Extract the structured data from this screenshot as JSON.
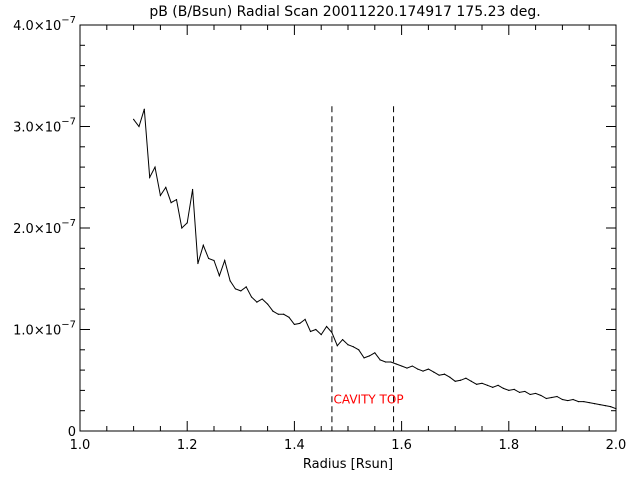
{
  "chart_data": {
    "type": "line",
    "title": "pB (B/Bsun) Radial Scan 20011220.174917 175.23 deg.",
    "xlabel": "Radius [Rsun]",
    "ylabel": "",
    "xlim": [
      1.0,
      2.0
    ],
    "ylim": [
      0,
      4e-07
    ],
    "x_ticks": [
      1.0,
      1.2,
      1.4,
      1.6,
      1.8,
      2.0
    ],
    "x_tick_labels": [
      "1.0",
      "1.2",
      "1.4",
      "1.6",
      "1.8",
      "2.0"
    ],
    "y_ticks": [
      0,
      1e-07,
      2e-07,
      3e-07,
      4e-07
    ],
    "y_tick_labels": [
      {
        "mantissa": "0",
        "exponent": ""
      },
      {
        "mantissa": "1.0×10",
        "exponent": "−7"
      },
      {
        "mantissa": "2.0×10",
        "exponent": "−7"
      },
      {
        "mantissa": "3.0×10",
        "exponent": "−7"
      },
      {
        "mantissa": "4.0×10",
        "exponent": "−7"
      }
    ],
    "grid": false,
    "series": [
      {
        "color": "#000000",
        "x": [
          1.1,
          1.11,
          1.12,
          1.13,
          1.14,
          1.15,
          1.16,
          1.17,
          1.18,
          1.19,
          1.2,
          1.21,
          1.22,
          1.23,
          1.24,
          1.25,
          1.26,
          1.27,
          1.28,
          1.29,
          1.3,
          1.31,
          1.32,
          1.33,
          1.34,
          1.35,
          1.36,
          1.37,
          1.38,
          1.39,
          1.4,
          1.41,
          1.42,
          1.43,
          1.44,
          1.45,
          1.46,
          1.47,
          1.48,
          1.49,
          1.5,
          1.51,
          1.52,
          1.53,
          1.54,
          1.55,
          1.56,
          1.57,
          1.58,
          1.59,
          1.6,
          1.61,
          1.62,
          1.63,
          1.64,
          1.65,
          1.66,
          1.67,
          1.68,
          1.69,
          1.7,
          1.71,
          1.72,
          1.73,
          1.74,
          1.75,
          1.76,
          1.77,
          1.78,
          1.79,
          1.8,
          1.81,
          1.82,
          1.83,
          1.84,
          1.85,
          1.86,
          1.87,
          1.88,
          1.89,
          1.9,
          1.91,
          1.92,
          1.93,
          1.94,
          1.95,
          1.96,
          1.97,
          1.98,
          1.99,
          2.0
        ],
        "y": [
          3.07e-07,
          3e-07,
          3.17e-07,
          2.5e-07,
          2.6e-07,
          2.32e-07,
          2.4e-07,
          2.25e-07,
          2.28e-07,
          2e-07,
          2.05e-07,
          2.38e-07,
          1.65e-07,
          1.83e-07,
          1.7e-07,
          1.68e-07,
          1.53e-07,
          1.68e-07,
          1.48e-07,
          1.4e-07,
          1.38e-07,
          1.42e-07,
          1.32e-07,
          1.27e-07,
          1.3e-07,
          1.25e-07,
          1.18e-07,
          1.15e-07,
          1.15e-07,
          1.12e-07,
          1.05e-07,
          1.06e-07,
          1.1e-07,
          9.8e-08,
          1e-07,
          9.5e-08,
          1.03e-07,
          9.7e-08,
          8.4e-08,
          9e-08,
          8.5e-08,
          8.3e-08,
          8e-08,
          7.2e-08,
          7.4e-08,
          7.7e-08,
          7e-08,
          6.8e-08,
          6.8e-08,
          6.6e-08,
          6.4e-08,
          6.2e-08,
          6.4e-08,
          6.1e-08,
          5.9e-08,
          6.1e-08,
          5.8e-08,
          5.5e-08,
          5.6e-08,
          5.3e-08,
          4.9e-08,
          5e-08,
          5.2e-08,
          4.9e-08,
          4.6e-08,
          4.7e-08,
          4.5e-08,
          4.3e-08,
          4.5e-08,
          4.2e-08,
          4e-08,
          4.1e-08,
          3.8e-08,
          3.9e-08,
          3.6e-08,
          3.7e-08,
          3.5e-08,
          3.2e-08,
          3.3e-08,
          3.4e-08,
          3.1e-08,
          3e-08,
          3.1e-08,
          2.9e-08,
          2.9e-08,
          2.8e-08,
          2.7e-08,
          2.6e-08,
          2.5e-08,
          2.4e-08,
          2.2e-08
        ]
      }
    ],
    "markers": [
      {
        "x": 1.47,
        "style": "dashed",
        "color": "#000000",
        "y_top": 3.2e-07
      },
      {
        "x": 1.585,
        "style": "dashed",
        "color": "#000000",
        "y_top": 3.2e-07
      }
    ],
    "annotations": [
      {
        "text": "CAVITY TOP",
        "x": 1.473,
        "y": 2.7e-08,
        "color": "#ff0000"
      }
    ]
  }
}
